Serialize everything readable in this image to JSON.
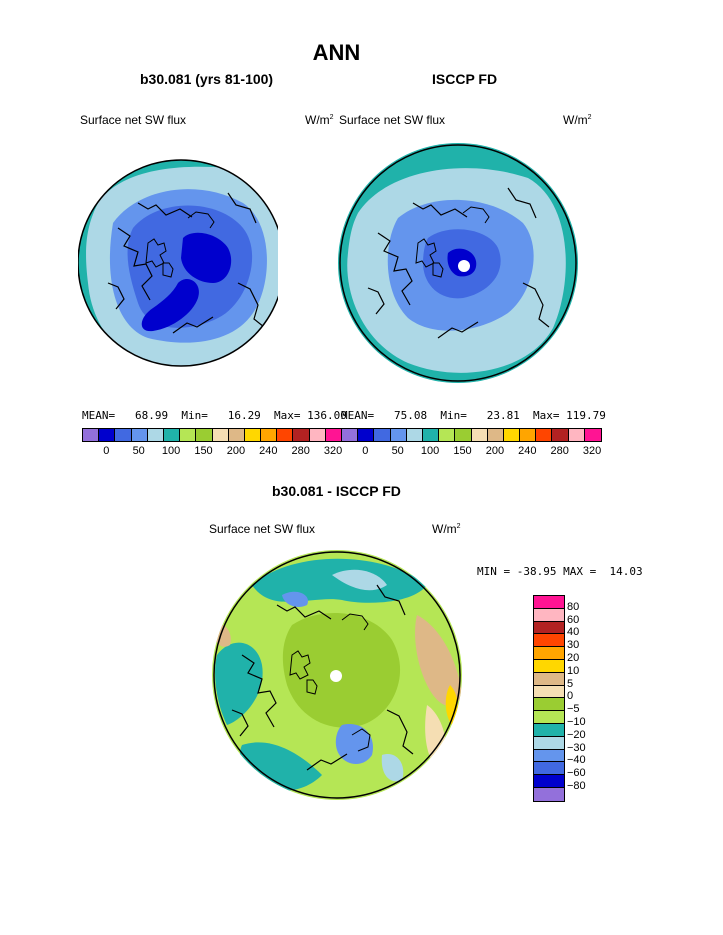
{
  "figure": {
    "title": "ANN",
    "left_panel": {
      "subtitle": "b30.081 (yrs 81-100)",
      "field_label": "Surface net SW flux",
      "units": "W/m",
      "units_sup": "2",
      "stats": "MEAN=   68.99  Min=   16.29  Max= 136.00"
    },
    "right_panel": {
      "subtitle": "ISCCP FD",
      "field_label": "Surface net SW flux",
      "units": "W/m",
      "units_sup": "2",
      "stats": "MEAN=   75.08  Min=   23.81  Max= 119.79"
    },
    "diff_panel": {
      "subtitle": "b30.081 - ISCCP FD",
      "field_label": "Surface net SW flux",
      "units": "W/m",
      "units_sup": "2",
      "stats": "MIN = -38.95 MAX =  14.03"
    }
  },
  "colorbar_top": {
    "colors": [
      "#9370db",
      "#0000cd",
      "#4169e1",
      "#6495ed",
      "#add8e6",
      "#20b2aa",
      "#b5e655",
      "#9acd32",
      "#f5deb3",
      "#deb887",
      "#ffd700",
      "#ffa500",
      "#ff4500",
      "#b22222",
      "#ffb6c1",
      "#ff1493"
    ],
    "ticks": [
      "0",
      "50",
      "100",
      "150",
      "200",
      "240",
      "280",
      "320"
    ]
  },
  "colorbar_diff": {
    "colors": [
      "#ff1493",
      "#ffb6c1",
      "#b22222",
      "#ff4500",
      "#ffa500",
      "#ffd700",
      "#deb887",
      "#f5deb3",
      "#9acd32",
      "#b5e655",
      "#20b2aa",
      "#add8e6",
      "#6495ed",
      "#4169e1",
      "#0000cd",
      "#9370db"
    ],
    "ticks": [
      "80",
      "60",
      "40",
      "30",
      "20",
      "10",
      "5",
      "0",
      "−5",
      "−10",
      "−20",
      "−30",
      "−40",
      "−60",
      "−80"
    ]
  },
  "maps": {
    "left": {
      "colors": [
        "#20b2aa",
        "#add8e6",
        "#6495ed",
        "#4169e1",
        "#0000cd"
      ]
    },
    "right": {
      "colors": [
        "#20b2aa",
        "#add8e6",
        "#6495ed",
        "#4169e1",
        "#0000cd"
      ]
    },
    "diff": {
      "colors": [
        "#9acd32",
        "#b5e655",
        "#20b2aa",
        "#add8e6",
        "#f5deb3",
        "#deb887",
        "#ffd700"
      ]
    }
  }
}
